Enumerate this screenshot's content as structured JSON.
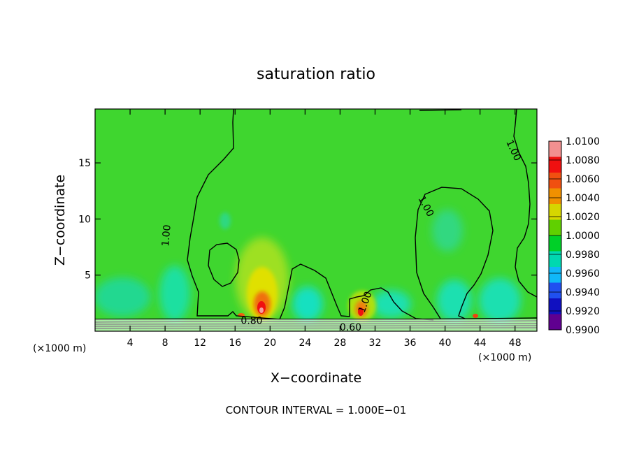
{
  "chart_data": {
    "type": "heatmap",
    "title": "saturation ratio",
    "xlabel": "X−coordinate",
    "ylabel": "Z−coordinate",
    "x_unit_left": "(×1000 m)",
    "x_unit_right": "(×1000 m)",
    "xlim": [
      0,
      50.5
    ],
    "ylim": [
      0,
      19.8
    ],
    "x_ticks": [
      4,
      8,
      12,
      16,
      20,
      24,
      28,
      32,
      36,
      40,
      44,
      48
    ],
    "y_ticks": [
      5,
      10,
      15
    ],
    "footer": "CONTOUR INTERVAL = 1.000E−01",
    "colorbar": {
      "levels": [
        "1.0100",
        "1.0080",
        "1.0060",
        "1.0040",
        "1.0020",
        "1.0000",
        "0.9980",
        "0.9960",
        "0.9940",
        "0.9920",
        "0.9900"
      ],
      "colors": [
        "#f29090",
        "#f01010",
        "#f05010",
        "#f09000",
        "#d6d600",
        "#60d000",
        "#00d028",
        "#00d8b0",
        "#10b8f8",
        "#2050f0",
        "#1010c0",
        "#600090"
      ]
    },
    "contour_labels": [
      {
        "text": "1.00",
        "x": 8.5,
        "y": 8.5,
        "rot": -85
      },
      {
        "text": "1.00",
        "x": 37.5,
        "y": 11.0,
        "rot": 62
      },
      {
        "text": "1.00",
        "x": 47.5,
        "y": 16.0,
        "rot": 65
      },
      {
        "text": "1.00",
        "x": 31.2,
        "y": 2.5,
        "rot": -70
      },
      {
        "text": "0.80",
        "x": 17.9,
        "y": 0.65,
        "rot": 0
      },
      {
        "text": "0.60",
        "x": 29.2,
        "y": 0.05,
        "rot": 0
      }
    ]
  }
}
